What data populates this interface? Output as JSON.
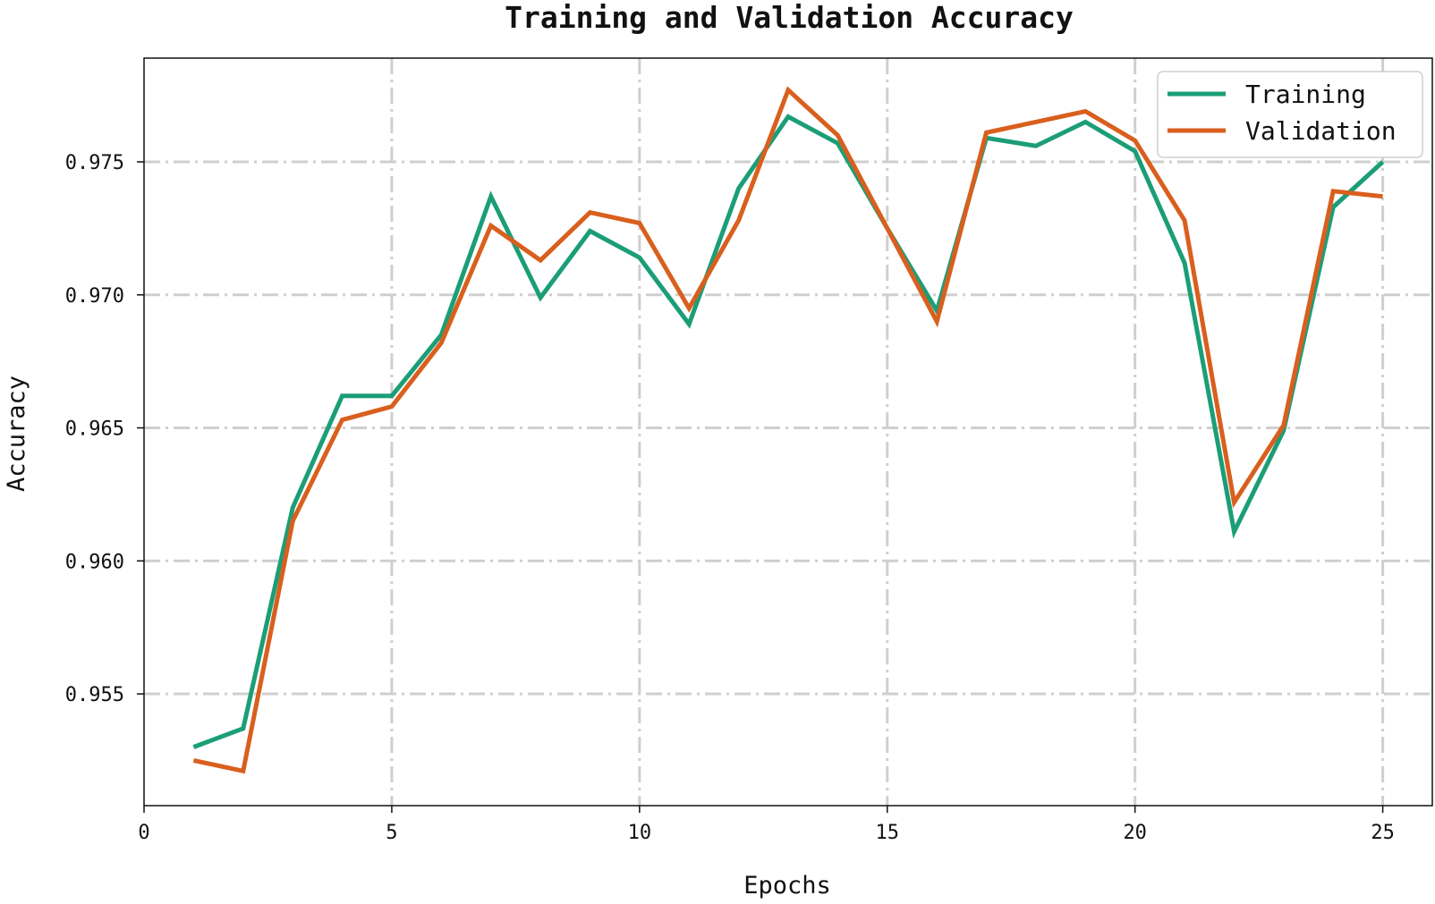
{
  "chart_data": {
    "type": "line",
    "title": "Training and Validation Accuracy",
    "xlabel": "Epochs",
    "ylabel": "Accuracy",
    "xlim": [
      0,
      26
    ],
    "ylim": [
      0.9508,
      0.9789
    ],
    "xticks": [
      0,
      5,
      10,
      15,
      20,
      25
    ],
    "xtick_labels": [
      "0",
      "5",
      "10",
      "15",
      "20",
      "25"
    ],
    "yticks": [
      0.955,
      0.96,
      0.965,
      0.97,
      0.975
    ],
    "ytick_labels": [
      "0.955",
      "0.960",
      "0.965",
      "0.970",
      "0.975"
    ],
    "grid": true,
    "legend_position": "top-right",
    "x": [
      1,
      2,
      3,
      4,
      5,
      6,
      7,
      8,
      9,
      10,
      11,
      12,
      13,
      14,
      15,
      16,
      17,
      18,
      19,
      20,
      21,
      22,
      23,
      24,
      25
    ],
    "series": [
      {
        "name": "Training",
        "color": "#1b9e77",
        "values": [
          0.953,
          0.9537,
          0.962,
          0.9662,
          0.9662,
          0.9685,
          0.9737,
          0.9699,
          0.9724,
          0.9714,
          0.9689,
          0.974,
          0.9767,
          0.9757,
          0.9725,
          0.9694,
          0.9759,
          0.9756,
          0.9765,
          0.9754,
          0.9712,
          0.9611,
          0.9649,
          0.9733,
          0.975
        ]
      },
      {
        "name": "Validation",
        "color": "#d95f1e",
        "values": [
          0.9525,
          0.9521,
          0.9615,
          0.9653,
          0.9658,
          0.9682,
          0.9726,
          0.9713,
          0.9731,
          0.9727,
          0.9695,
          0.9728,
          0.9777,
          0.976,
          0.9725,
          0.969,
          0.9761,
          0.9765,
          0.9769,
          0.9758,
          0.9728,
          0.9622,
          0.9651,
          0.9739,
          0.9737
        ]
      }
    ]
  }
}
